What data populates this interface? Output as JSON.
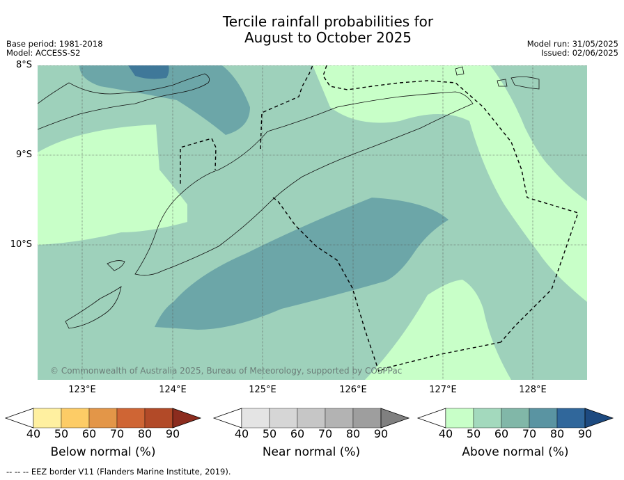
{
  "title_line1": "Tercile rainfall probabilities for",
  "title_line2": "August to October 2025",
  "base_period": "Base period: 1981-2018",
  "model": "Model: ACCESS-S2",
  "model_run": "Model run: 31/05/2025",
  "issued": "Issued: 02/06/2025",
  "lat_labels": [
    "8°S",
    "9°S",
    "10°S"
  ],
  "lon_labels": [
    "123°E",
    "124°E",
    "125°E",
    "126°E",
    "127°E",
    "128°E"
  ],
  "copyright": "© Commonwealth of Australia 2025, Bureau of Meteorology, supported by COSPPac",
  "colorbars": [
    {
      "label": "Below normal (%)",
      "ticks": [
        "40",
        "50",
        "60",
        "70",
        "80",
        "90"
      ],
      "colors": [
        "#ffffff",
        "#fff0a0",
        "#fdcc66",
        "#e39648",
        "#cf6534",
        "#b24a28",
        "#8c2c1e"
      ]
    },
    {
      "label": "Near normal (%)",
      "ticks": [
        "40",
        "50",
        "60",
        "70",
        "80",
        "90"
      ],
      "colors": [
        "#ffffff",
        "#e4e4e4",
        "#d6d6d6",
        "#c6c6c6",
        "#b3b3b3",
        "#9e9e9e",
        "#808080"
      ]
    },
    {
      "label": "Above normal (%)",
      "ticks": [
        "40",
        "50",
        "60",
        "70",
        "80",
        "90"
      ],
      "colors": [
        "#ffffff",
        "#c8ffc8",
        "#a3d9bd",
        "#81b7a8",
        "#5a94a2",
        "#30679b",
        "#1d4a80"
      ]
    }
  ],
  "footer": "-- -- -- EEZ border V11 (Flanders Marine Institute, 2019)."
}
